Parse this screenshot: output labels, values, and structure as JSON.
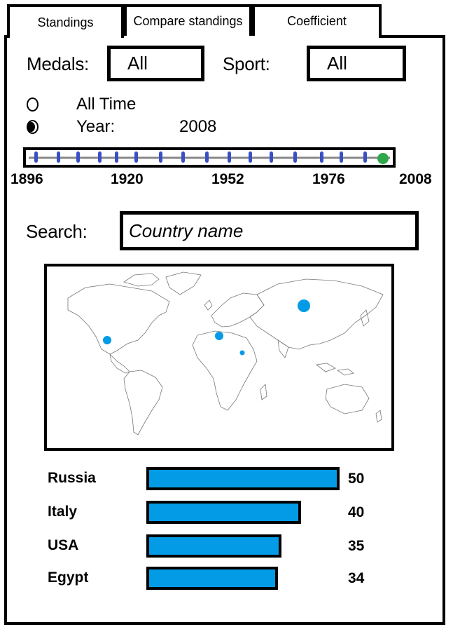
{
  "tabs": [
    {
      "label": "Standings",
      "active": true
    },
    {
      "label": "Compare standings",
      "active": false
    },
    {
      "label": "Coefficient",
      "active": false
    }
  ],
  "filters": {
    "medals_label": "Medals:",
    "medals_value": "All",
    "sport_label": "Sport:",
    "sport_value": "All"
  },
  "time": {
    "all_time_label": "All Time",
    "year_label": "Year:",
    "year_value": "2008",
    "selected": "year"
  },
  "timeline": {
    "ticks": [
      "1896",
      "1920",
      "1952",
      "1976",
      "2008"
    ],
    "marker_color": "#3a4fc4",
    "selected_color": "#2ea84a",
    "selected_year": "2008"
  },
  "search": {
    "label": "Search:",
    "placeholder": "Country name"
  },
  "map": {
    "marker_color": "#039be5"
  },
  "standings": [
    {
      "country": "Russia",
      "value": 50
    },
    {
      "country": "Italy",
      "value": 40
    },
    {
      "country": "USA",
      "value": 35
    },
    {
      "country": "Egypt",
      "value": 34
    }
  ],
  "colors": {
    "bar": "#039be5"
  }
}
